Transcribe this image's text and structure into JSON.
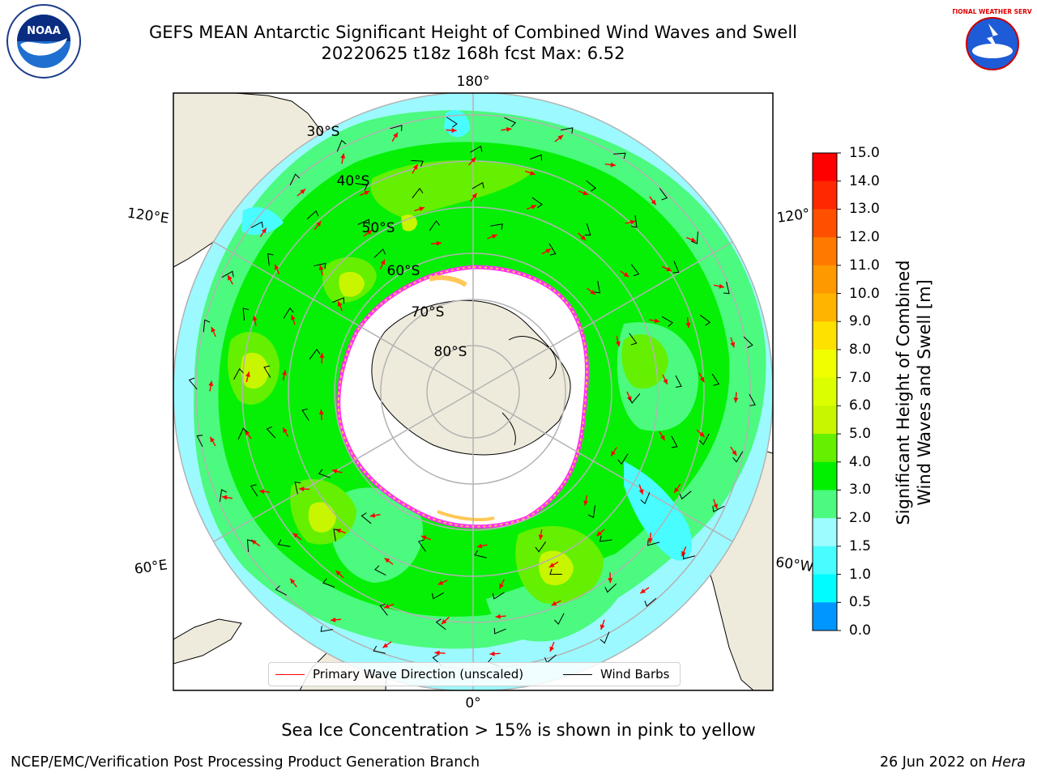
{
  "title": {
    "line1": "GEFS MEAN Antarctic Significant Height of Combined Wind Waves and Swell",
    "line2": "20220625 t18z 168h fcst   Max: 6.52"
  },
  "map": {
    "longitude_labels": [
      "180°",
      "120°E",
      "120°",
      "60°E",
      "60°W",
      "0°"
    ],
    "latitude_labels": [
      "30°S",
      "40°S",
      "50°S",
      "60°S",
      "70°S",
      "80°S"
    ],
    "colors": {
      "land": "#efebdc",
      "ocean_low": "#9cf9ff",
      "ocean_mid": "#4bfa7e",
      "ocean_high": "#06f006",
      "ocean_peak": "#c3fa00",
      "ice_edge": "#ff33ee",
      "ice_yellow": "#ffc857",
      "arrow": "#ff0000",
      "barb": "#000000"
    }
  },
  "legend": {
    "wave_label": "Primary Wave Direction (unscaled)",
    "wind_label": "Wind Barbs",
    "wave_color": "#ff0000",
    "wind_color": "#000000"
  },
  "colorbar": {
    "title_line1": "Significant Height of Combined",
    "title_line2": "Wind Waves and Swell [m]",
    "ticks": [
      "15.0",
      "14.0",
      "13.0",
      "12.0",
      "11.0",
      "10.0",
      "9.0",
      "8.0",
      "7.0",
      "6.0",
      "5.0",
      "4.0",
      "3.0",
      "2.0",
      "1.5",
      "1.0",
      "0.5",
      "0.0"
    ],
    "colors": [
      "#ff0000",
      "#ff2800",
      "#ff5000",
      "#ff7800",
      "#ff9900",
      "#ffb400",
      "#ffe100",
      "#f0ff00",
      "#dcff00",
      "#c8f500",
      "#64f000",
      "#00f000",
      "#4bfa7e",
      "#9cfcff",
      "#48fcff",
      "#00fcff",
      "#0096ff",
      "#0064ff",
      "#0000ff"
    ]
  },
  "caption": "Sea Ice Concentration > 15% is shown in pink to yellow",
  "footer": {
    "left": "NCEP/EMC/Verification Post Processing Product Generation Branch",
    "right_prefix": "26 Jun 2022 on ",
    "right_host": "Hera"
  },
  "logos": {
    "noaa_text": "NOAA",
    "nws_text": "NATIONAL WEATHER SERVICE"
  }
}
